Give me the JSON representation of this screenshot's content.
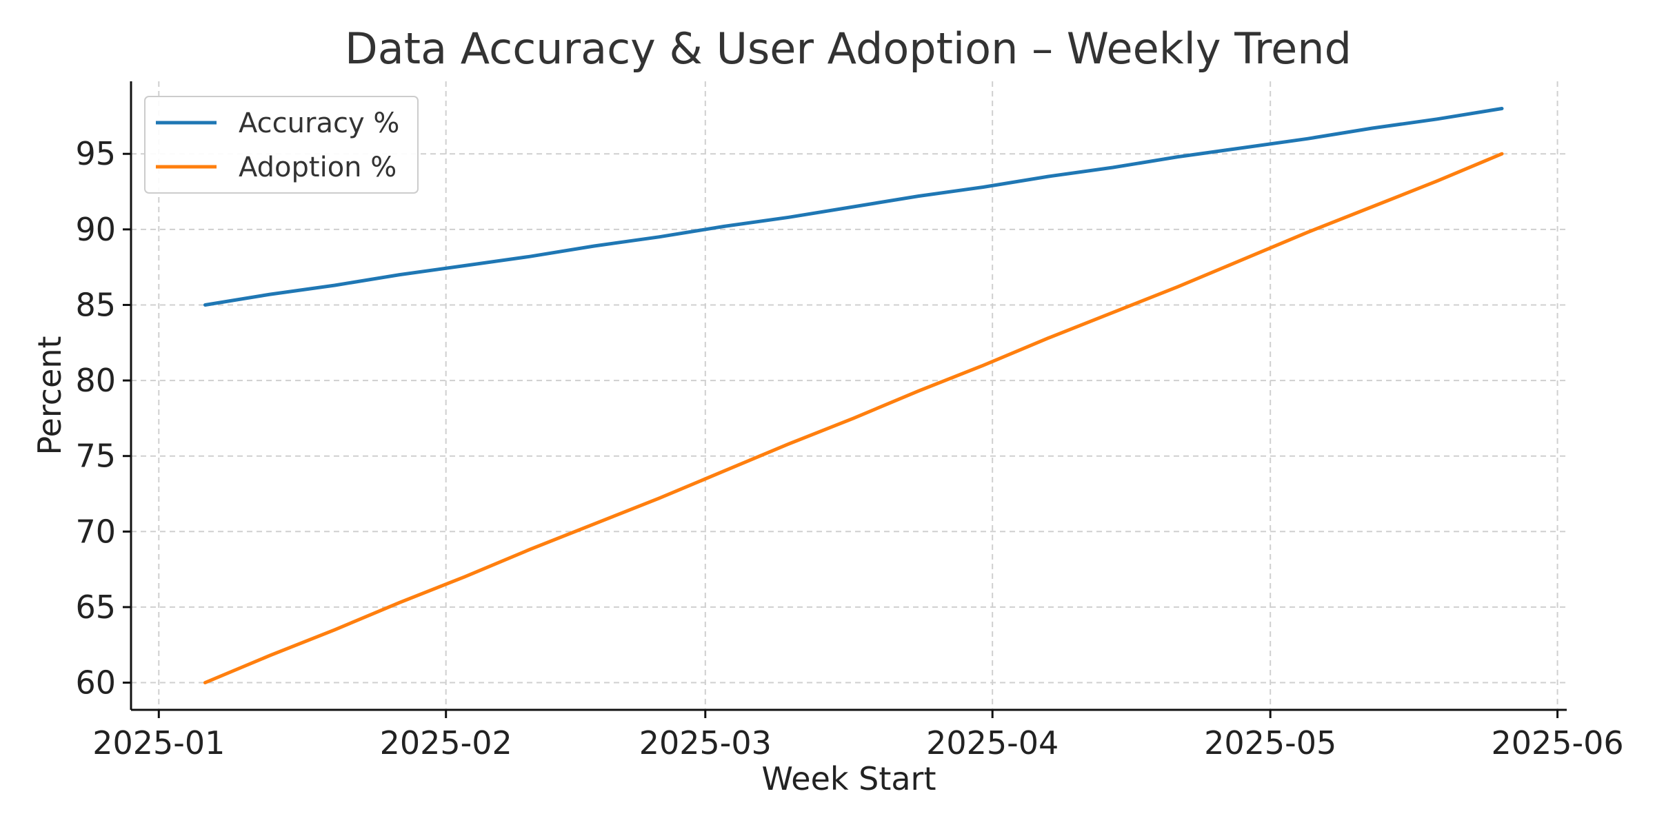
{
  "chart_data": {
    "type": "line",
    "title": "Data Accuracy & User Adoption – Weekly Trend",
    "xlabel": "Week Start",
    "ylabel": "Percent",
    "x_axis_type": "date",
    "xlim": [
      "2024-12-29",
      "2025-06-02"
    ],
    "ylim": [
      58.2,
      99.8
    ],
    "x_ticks": [
      "2025-01-01",
      "2025-02-01",
      "2025-03-01",
      "2025-04-01",
      "2025-05-01",
      "2025-06-01"
    ],
    "x_tick_labels": [
      "2025-01",
      "2025-02",
      "2025-03",
      "2025-04",
      "2025-05",
      "2025-06"
    ],
    "y_ticks": [
      60,
      65,
      70,
      75,
      80,
      85,
      90,
      95
    ],
    "y_tick_labels": [
      "60",
      "65",
      "70",
      "75",
      "80",
      "85",
      "90",
      "95"
    ],
    "grid": true,
    "legend_position": "top-left",
    "x": [
      "2025-01-06",
      "2025-01-13",
      "2025-01-20",
      "2025-01-27",
      "2025-02-03",
      "2025-02-10",
      "2025-02-17",
      "2025-02-24",
      "2025-03-03",
      "2025-03-10",
      "2025-03-17",
      "2025-03-24",
      "2025-03-31",
      "2025-04-07",
      "2025-04-14",
      "2025-04-21",
      "2025-04-28",
      "2025-05-05",
      "2025-05-12",
      "2025-05-19",
      "2025-05-26"
    ],
    "series": [
      {
        "name": "Accuracy %",
        "color": "#1f77b4",
        "values": [
          85.0,
          85.7,
          86.3,
          87.0,
          87.6,
          88.2,
          88.9,
          89.5,
          90.2,
          90.8,
          91.5,
          92.2,
          92.8,
          93.5,
          94.1,
          94.8,
          95.4,
          96.0,
          96.7,
          97.3,
          98.0
        ]
      },
      {
        "name": "Adoption %",
        "color": "#ff7f0e",
        "values": [
          60.0,
          61.8,
          63.5,
          65.3,
          67.0,
          68.8,
          70.5,
          72.2,
          74.0,
          75.8,
          77.5,
          79.3,
          81.0,
          82.8,
          84.5,
          86.2,
          88.0,
          89.8,
          91.5,
          93.2,
          95.0
        ]
      }
    ]
  }
}
